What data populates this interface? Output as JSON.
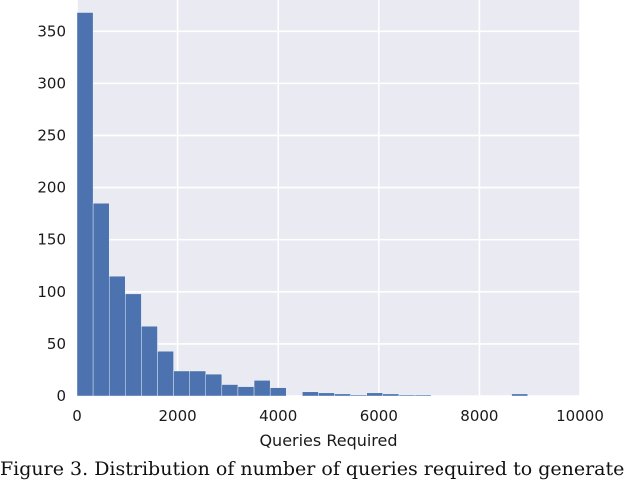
{
  "chart_data": {
    "type": "bar",
    "subtype": "histogram",
    "title": "",
    "xlabel": "Queries Required",
    "ylabel": "",
    "xlim": [
      0,
      10000
    ],
    "ylim": [
      0,
      380
    ],
    "xticks": [
      0,
      2000,
      4000,
      6000,
      8000,
      10000
    ],
    "yticks": [
      0,
      50,
      100,
      150,
      200,
      250,
      300,
      350
    ],
    "xtick_labels": [
      "0",
      "2000",
      "4000",
      "6000",
      "8000",
      "10000"
    ],
    "ytick_labels": [
      "0",
      "50",
      "100",
      "150",
      "200",
      "250",
      "300",
      "350"
    ],
    "grid": true,
    "bin_width": 320,
    "bin_edges_start": 0,
    "values": [
      368,
      185,
      115,
      98,
      67,
      43,
      24,
      24,
      21,
      11,
      9,
      15,
      8,
      0,
      4,
      3,
      2,
      1,
      3,
      2,
      1,
      1,
      0,
      0,
      0,
      0,
      0,
      2,
      0,
      0,
      0
    ],
    "bar_color": "#4c72b0",
    "background_color": "#eaeaf2",
    "grid_color": "#ffffff"
  },
  "caption": "Figure 3.   Distribution of number of queries required to generate"
}
